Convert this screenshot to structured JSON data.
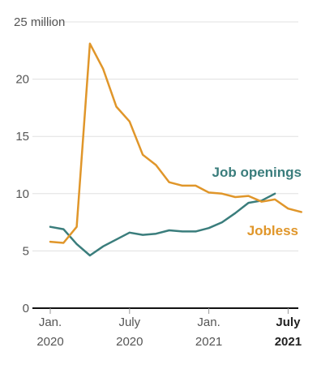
{
  "chart_data": {
    "type": "line",
    "y_unit_label": "25 million",
    "ylim": [
      0,
      25
    ],
    "y_ticks": [
      {
        "value": 0,
        "label": "0"
      },
      {
        "value": 5,
        "label": "5"
      },
      {
        "value": 10,
        "label": "10"
      },
      {
        "value": 15,
        "label": "15"
      },
      {
        "value": 20,
        "label": "20"
      },
      {
        "value": 25,
        "label": "million"
      }
    ],
    "x_ticks": [
      {
        "month": "2020-01",
        "line1": "Jan.",
        "line2": "2020",
        "bold": false
      },
      {
        "month": "2020-07",
        "line1": "July",
        "line2": "2020",
        "bold": false
      },
      {
        "month": "2021-01",
        "line1": "Jan.",
        "line2": "2021",
        "bold": false
      },
      {
        "month": "2021-07",
        "line1": "July",
        "line2": "2021",
        "bold": true
      }
    ],
    "x": [
      "2020-01",
      "2020-02",
      "2020-03",
      "2020-04",
      "2020-05",
      "2020-06",
      "2020-07",
      "2020-08",
      "2020-09",
      "2020-10",
      "2020-11",
      "2020-12",
      "2021-01",
      "2021-02",
      "2021-03",
      "2021-04",
      "2021-05",
      "2021-06",
      "2021-07",
      "2021-08"
    ],
    "grid": true,
    "series": [
      {
        "name": "Job openings",
        "color": "#3a7d7c",
        "values": [
          7.1,
          6.9,
          5.6,
          4.6,
          5.4,
          6.0,
          6.6,
          6.4,
          6.5,
          6.8,
          6.7,
          6.7,
          7.0,
          7.5,
          8.3,
          9.2,
          9.4,
          10.0,
          null,
          null
        ]
      },
      {
        "name": "Jobless",
        "color": "#e0962a",
        "values": [
          5.8,
          5.7,
          7.1,
          23.1,
          20.9,
          17.6,
          16.3,
          13.4,
          12.5,
          11.0,
          10.7,
          10.7,
          10.1,
          10.0,
          9.7,
          9.8,
          9.3,
          9.5,
          8.7,
          8.4
        ]
      }
    ]
  }
}
